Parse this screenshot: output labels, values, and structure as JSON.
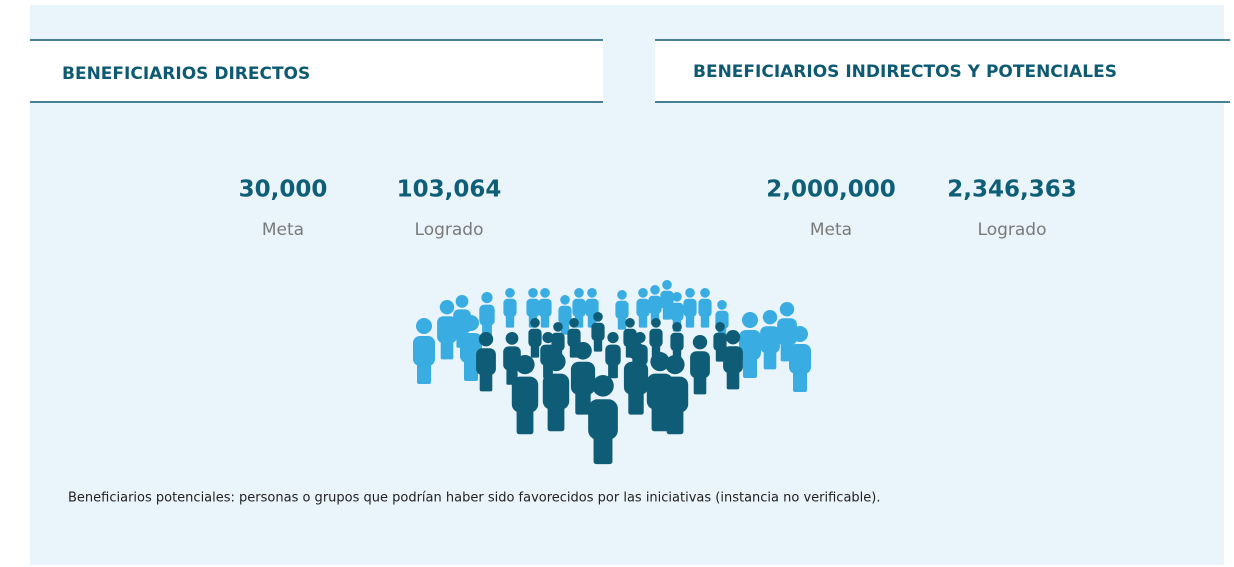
{
  "panels": [
    {
      "title": "BENEFICIARIOS DIRECTOS",
      "stats": [
        {
          "value": "30,000",
          "label": "Meta"
        },
        {
          "value": "103,064",
          "label": "Logrado"
        }
      ]
    },
    {
      "title": "BENEFICIARIOS INDIRECTOS Y POTENCIALES",
      "stats": [
        {
          "value": "2,000,000",
          "label": "Meta"
        },
        {
          "value": "2,346,363",
          "label": "Logrado"
        }
      ]
    }
  ],
  "footnote": "Beneficiarios potenciales: personas o grupos que podrían haber sido favorecidos por las iniciativas (instancia no verificable)."
}
